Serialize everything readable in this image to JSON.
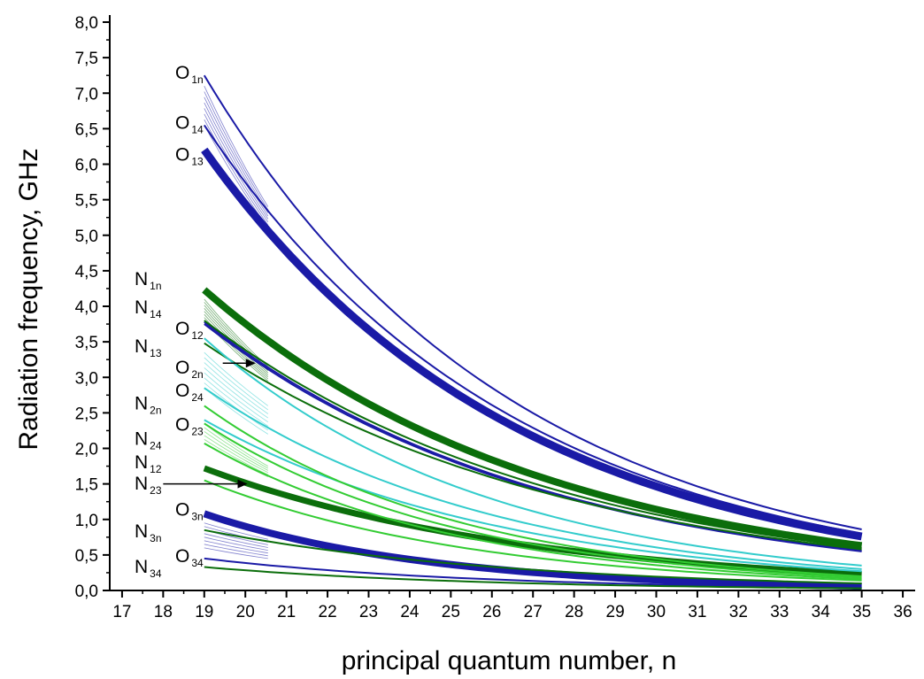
{
  "chart_data": {
    "type": "line",
    "xlabel": "principal quantum number, n",
    "ylabel": "Radiation frequency, GHz",
    "xlim": [
      16.7,
      36.3
    ],
    "ylim": [
      0,
      8
    ],
    "x_ticks": [
      "17",
      "18",
      "19",
      "20",
      "21",
      "22",
      "23",
      "24",
      "25",
      "26",
      "27",
      "28",
      "29",
      "30",
      "31",
      "32",
      "33",
      "34",
      "35",
      "36"
    ],
    "y_ticks": [
      "0,0",
      "0,5",
      "1,0",
      "1,5",
      "2,0",
      "2,5",
      "3,0",
      "3,5",
      "4,0",
      "4,5",
      "5,0",
      "5,5",
      "6,0",
      "6,5",
      "7,0",
      "7,5",
      "8,0"
    ],
    "grid": false,
    "colors": {
      "O": "#1a1aa6",
      "N": "#0b6e0b",
      "O2": "#33cccc",
      "N2": "#33cc33"
    },
    "series": [
      {
        "group": "O",
        "x": [
          19,
          35
        ],
        "values": [
          7.25,
          0.86
        ],
        "lw": 2
      },
      {
        "group": "O",
        "x": [
          19,
          35
        ],
        "values": [
          6.55,
          0.8
        ],
        "lw": 2
      },
      {
        "group": "O",
        "x": [
          19,
          35
        ],
        "values": [
          6.2,
          0.76
        ],
        "lw": 9
      },
      {
        "group": "O",
        "x": [
          19,
          35
        ],
        "values": [
          3.78,
          0.56
        ],
        "lw": 2
      },
      {
        "group": "O",
        "x": [
          19,
          35
        ],
        "values": [
          3.75,
          0.55
        ],
        "lw": 2
      },
      {
        "group": "O",
        "x": [
          19,
          35
        ],
        "values": [
          1.08,
          0.06
        ],
        "lw": 8
      },
      {
        "group": "O",
        "x": [
          19,
          35
        ],
        "values": [
          0.45,
          0.04
        ],
        "lw": 2
      },
      {
        "group": "N",
        "x": [
          19,
          35
        ],
        "values": [
          4.23,
          0.63
        ],
        "lw": 8
      },
      {
        "group": "N",
        "x": [
          19,
          35
        ],
        "values": [
          3.8,
          0.6
        ],
        "lw": 2
      },
      {
        "group": "N",
        "x": [
          19,
          35
        ],
        "values": [
          3.48,
          0.58
        ],
        "lw": 2
      },
      {
        "group": "N",
        "x": [
          19,
          35
        ],
        "values": [
          1.72,
          0.23
        ],
        "lw": 7
      },
      {
        "group": "N",
        "x": [
          19,
          35
        ],
        "values": [
          0.85,
          0.1
        ],
        "lw": 2
      },
      {
        "group": "N",
        "x": [
          19,
          35
        ],
        "values": [
          0.33,
          0.03
        ],
        "lw": 2
      },
      {
        "group": "O2",
        "x": [
          19,
          35
        ],
        "values": [
          3.55,
          0.35
        ],
        "lw": 2
      },
      {
        "group": "O2",
        "x": [
          19,
          35
        ],
        "values": [
          2.85,
          0.3
        ],
        "lw": 2
      },
      {
        "group": "O2",
        "x": [
          19,
          35
        ],
        "values": [
          2.4,
          0.27
        ],
        "lw": 2
      },
      {
        "group": "N2",
        "x": [
          19,
          35
        ],
        "values": [
          2.6,
          0.2
        ],
        "lw": 2
      },
      {
        "group": "N2",
        "x": [
          19,
          35
        ],
        "values": [
          2.35,
          0.18
        ],
        "lw": 2
      },
      {
        "group": "N2",
        "x": [
          19,
          35
        ],
        "values": [
          2.07,
          0.16
        ],
        "lw": 2
      },
      {
        "group": "N2",
        "x": [
          19,
          35
        ],
        "values": [
          1.55,
          0.14
        ],
        "lw": 2
      }
    ],
    "fans": [
      {
        "group": "O",
        "x": [
          19,
          20.55
        ],
        "top": [
          7.1,
          5.4
        ],
        "bottom": [
          6.55,
          5.1
        ],
        "count": 8
      },
      {
        "group": "N",
        "x": [
          19,
          20.55
        ],
        "top": [
          4.1,
          3.15
        ],
        "bottom": [
          3.8,
          2.95
        ],
        "count": 8
      },
      {
        "group": "O2",
        "x": [
          19,
          20.55
        ],
        "top": [
          3.35,
          2.6
        ],
        "bottom": [
          2.85,
          2.2
        ],
        "count": 8
      },
      {
        "group": "N2",
        "x": [
          19,
          20.55
        ],
        "top": [
          2.35,
          1.75
        ],
        "bottom": [
          2.07,
          1.6
        ],
        "count": 6
      },
      {
        "group": "O",
        "x": [
          19,
          20.55
        ],
        "top": [
          0.95,
          0.72
        ],
        "bottom": [
          0.6,
          0.45
        ],
        "count": 8
      }
    ],
    "labels": [
      {
        "base": "O",
        "sub": "1n",
        "y": 7.3
      },
      {
        "base": "O",
        "sub": "14",
        "y": 6.6
      },
      {
        "base": "O",
        "sub": "13",
        "y": 6.15
      },
      {
        "base": "N",
        "sub": "1n",
        "y": 4.4
      },
      {
        "base": "N",
        "sub": "14",
        "y": 4.0
      },
      {
        "base": "N",
        "sub": "13",
        "y": 3.45
      },
      {
        "base": "O",
        "sub": "12",
        "y": 3.7
      },
      {
        "base": "O",
        "sub": "2n",
        "y": 3.15
      },
      {
        "base": "O",
        "sub": "24",
        "y": 2.83
      },
      {
        "base": "N",
        "sub": "2n",
        "y": 2.65
      },
      {
        "base": "O",
        "sub": "23",
        "y": 2.35
      },
      {
        "base": "N",
        "sub": "24",
        "y": 2.15
      },
      {
        "base": "N",
        "sub": "12",
        "y": 1.82
      },
      {
        "base": "N",
        "sub": "23",
        "y": 1.52
      },
      {
        "base": "O",
        "sub": "3n",
        "y": 1.15
      },
      {
        "base": "N",
        "sub": "3n",
        "y": 0.85
      },
      {
        "base": "O",
        "sub": "34",
        "y": 0.5
      },
      {
        "base": "N",
        "sub": "34",
        "y": 0.35
      }
    ],
    "arrows": [
      {
        "from": [
          19.45,
          3.2
        ],
        "to": [
          20.25,
          3.2
        ]
      },
      {
        "from": [
          18.0,
          1.5
        ],
        "to": [
          20.05,
          1.5
        ]
      }
    ]
  }
}
